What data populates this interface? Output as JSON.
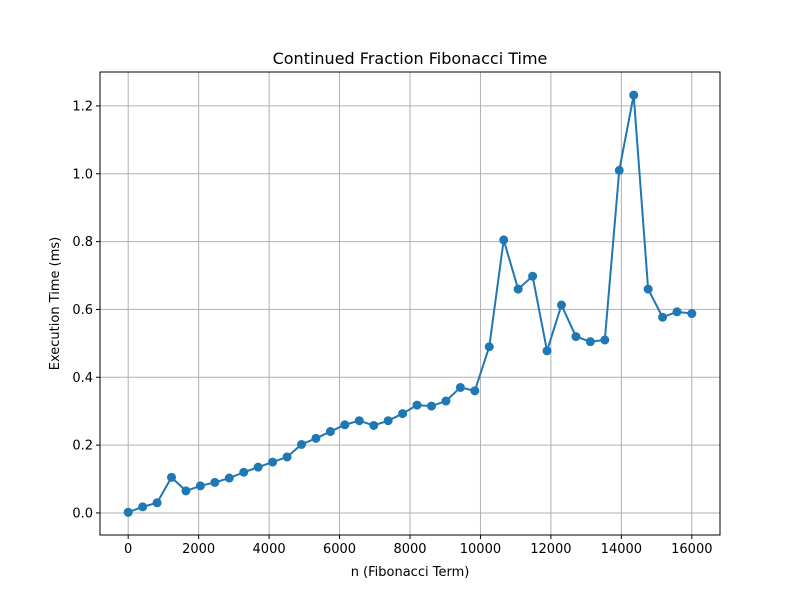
{
  "chart_data": {
    "type": "line",
    "title": "Continued Fraction Fibonacci Time",
    "xlabel": "n (Fibonacci Term)",
    "ylabel": "Execution Time (ms)",
    "xlim": [
      -800,
      16800
    ],
    "ylim": [
      -0.065,
      1.3
    ],
    "xticks": [
      0,
      2000,
      4000,
      6000,
      8000,
      10000,
      12000,
      14000,
      16000
    ],
    "xtick_labels": [
      "0",
      "2000",
      "4000",
      "6000",
      "8000",
      "10000",
      "12000",
      "14000",
      "16000"
    ],
    "yticks": [
      0.0,
      0.2,
      0.4,
      0.6,
      0.8,
      1.0,
      1.2
    ],
    "ytick_labels": [
      "0.0",
      "0.2",
      "0.4",
      "0.6",
      "0.8",
      "1.0",
      "1.2"
    ],
    "grid": true,
    "color": "#1f77b4",
    "series": [
      {
        "marker": "circle",
        "x": [
          0,
          410,
          820,
          1230,
          1640,
          2050,
          2460,
          2870,
          3280,
          3690,
          4100,
          4510,
          4920,
          5330,
          5740,
          6150,
          6560,
          6970,
          7380,
          7790,
          8200,
          8610,
          9020,
          9430,
          9840,
          10250,
          10660,
          11070,
          11480,
          11890,
          12300,
          12710,
          13120,
          13530,
          13940,
          14350,
          14760,
          15170,
          15580,
          16000
        ],
        "y": [
          0.002,
          0.018,
          0.03,
          0.105,
          0.065,
          0.08,
          0.09,
          0.103,
          0.12,
          0.135,
          0.15,
          0.165,
          0.202,
          0.22,
          0.24,
          0.26,
          0.272,
          0.258,
          0.272,
          0.293,
          0.318,
          0.315,
          0.33,
          0.37,
          0.36,
          0.49,
          0.805,
          0.66,
          0.698,
          0.478,
          0.613,
          0.52,
          0.505,
          0.51,
          1.01,
          1.232,
          0.66,
          0.577,
          0.593,
          0.588
        ]
      }
    ]
  }
}
